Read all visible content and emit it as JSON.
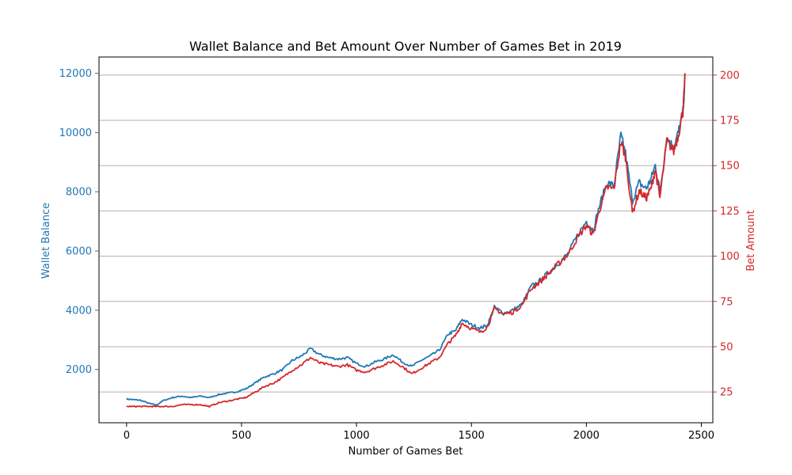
{
  "chart_data": {
    "type": "line",
    "title": "Wallet Balance and Bet Amount Over Number of Games Bet in 2019",
    "xlabel": "Number of Games Bet",
    "ylabel_left": "Wallet Balance",
    "ylabel_right": "Bet Amount",
    "xlim": [
      -120,
      2550
    ],
    "ylim_left": [
      200,
      12550
    ],
    "ylim_right": [
      8,
      210
    ],
    "x_ticks": [
      0,
      500,
      1000,
      1500,
      2000,
      2500
    ],
    "y_ticks_left": [
      2000,
      4000,
      6000,
      8000,
      10000,
      12000
    ],
    "y_ticks_right": [
      25,
      50,
      75,
      100,
      125,
      150,
      175,
      200
    ],
    "grid": "horizontal-right-axis",
    "colors": {
      "left_series": "#1f77b4",
      "right_series": "#d62728",
      "grid": "#b0b0b0"
    },
    "series": [
      {
        "axis": "left",
        "x": [
          0,
          30,
          60,
          100,
          130,
          160,
          200,
          240,
          280,
          320,
          360,
          400,
          440,
          480,
          520,
          560,
          600,
          640,
          680,
          720,
          760,
          800,
          840,
          880,
          920,
          960,
          1000,
          1040,
          1080,
          1120,
          1160,
          1200,
          1240,
          1280,
          1320,
          1360,
          1400,
          1430,
          1460,
          1500,
          1540,
          1570,
          1600,
          1640,
          1680,
          1720,
          1760,
          1800,
          1840,
          1880,
          1920,
          1960,
          2000,
          2030,
          2060,
          2090,
          2120,
          2150,
          2170,
          2200,
          2230,
          2260,
          2280,
          2300,
          2320,
          2350,
          2380,
          2400,
          2420,
          2430
        ],
        "values": [
          1000,
          980,
          960,
          850,
          800,
          950,
          1050,
          1100,
          1050,
          1100,
          1050,
          1150,
          1200,
          1250,
          1350,
          1550,
          1750,
          1850,
          2000,
          2300,
          2450,
          2700,
          2500,
          2400,
          2350,
          2400,
          2200,
          2100,
          2250,
          2350,
          2500,
          2250,
          2100,
          2300,
          2450,
          2650,
          3200,
          3300,
          3700,
          3500,
          3400,
          3500,
          4100,
          3900,
          4000,
          4200,
          4800,
          5000,
          5300,
          5600,
          5900,
          6500,
          7000,
          6700,
          7600,
          8300,
          8200,
          9900,
          9300,
          7700,
          8300,
          8100,
          8400,
          8900,
          8000,
          9800,
          9500,
          10000,
          10700,
          11900
        ]
      },
      {
        "axis": "right",
        "x": [
          0,
          30,
          60,
          100,
          130,
          160,
          200,
          240,
          280,
          320,
          360,
          400,
          440,
          480,
          520,
          560,
          600,
          640,
          680,
          720,
          760,
          800,
          840,
          880,
          920,
          960,
          1000,
          1040,
          1080,
          1120,
          1160,
          1200,
          1240,
          1280,
          1320,
          1360,
          1400,
          1430,
          1460,
          1500,
          1540,
          1570,
          1600,
          1640,
          1680,
          1720,
          1760,
          1800,
          1840,
          1880,
          1920,
          1960,
          2000,
          2030,
          2060,
          2090,
          2120,
          2150,
          2170,
          2200,
          2230,
          2260,
          2280,
          2300,
          2320,
          2350,
          2380,
          2400,
          2420,
          2430
        ],
        "values": [
          17,
          17,
          17,
          17,
          17,
          17,
          17,
          18,
          18,
          18,
          17,
          19,
          20,
          21,
          22,
          25,
          28,
          30,
          33,
          37,
          40,
          44,
          41,
          40,
          39,
          40,
          37,
          36,
          38,
          40,
          42,
          39,
          35,
          38,
          41,
          44,
          52,
          56,
          63,
          60,
          58,
          61,
          71,
          68,
          69,
          73,
          82,
          86,
          91,
          96,
          101,
          110,
          117,
          112,
          127,
          138,
          137,
          163,
          155,
          124,
          136,
          132,
          137,
          148,
          132,
          164,
          158,
          167,
          180,
          200
        ]
      }
    ]
  }
}
